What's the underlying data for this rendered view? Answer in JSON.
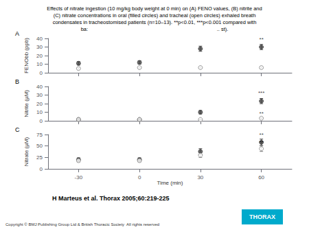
{
  "title": "Effects of nitrate ingestion (10 mg/kg body weight at 0 min) on (A) FENO values, (B) nitrite and\n(C) nitrate concentrations in oral (filled circles) and tracheal (open circles) exhaled breath\ncondensates in tracheostomised patients (n=10–13). **p<0.01, ***p<0.001 compared with\nba:                                                                                          .. st).",
  "citation": "H Marteus et al. Thorax 2005;60:219-225",
  "copyright": "Copyright © BMJ Publishing Group Ltd & British Thoracic Society  All rights reserved",
  "badge": {
    "text": "THORAX",
    "color": "#00aacc"
  },
  "chart_data": [
    {
      "type": "scatter",
      "title": "A",
      "ylabel": "FENObb (ppb)",
      "x": [
        -30,
        0,
        30,
        60
      ],
      "xlim": [
        -45,
        75
      ],
      "xticks": [
        -30,
        0,
        30,
        60
      ],
      "ylim": [
        0,
        40
      ],
      "yticks": [
        0,
        10,
        20,
        30,
        40
      ],
      "grid": false,
      "tick_labels": "y",
      "series": [
        {
          "color": "#444444",
          "marker": "circle",
          "values": [
            11,
            12,
            28,
            30
          ],
          "errors": [
            2,
            2,
            3,
            3
          ]
        },
        {
          "color": "#888888",
          "marker": "open_circle",
          "values": [
            5,
            6,
            6,
            6
          ],
          "errors": [
            1,
            1,
            1,
            1
          ]
        }
      ],
      "annotations": [
        {
          "text": "**",
          "x": 60,
          "y": 36
        }
      ]
    },
    {
      "type": "scatter",
      "title": "B",
      "ylabel": "Nitrite (µM)",
      "x": [
        -30,
        0,
        30,
        60
      ],
      "xlim": [
        -45,
        75
      ],
      "xticks": [
        -30,
        0,
        30,
        60
      ],
      "ylim": [
        0,
        40
      ],
      "yticks": [
        0,
        10,
        20,
        30,
        40
      ],
      "grid": false,
      "tick_labels": "y",
      "series": [
        {
          "color": "#444444",
          "marker": "circle",
          "values": [
            1.5,
            1.5,
            10,
            23
          ],
          "errors": [
            0.5,
            0.5,
            2,
            3
          ]
        },
        {
          "color": "#888888",
          "marker": "open_circle",
          "values": [
            1.5,
            1.5,
            1.5,
            3
          ],
          "errors": [
            0.3,
            0.3,
            0.4,
            0.6
          ]
        }
      ],
      "annotations": [
        {
          "text": "***",
          "x": 60,
          "y": 29
        },
        {
          "text": "**",
          "x": 60,
          "y": 5
        }
      ]
    },
    {
      "type": "scatter",
      "title": "C",
      "ylabel": "Nitrate (µM)",
      "xlabel": "Time (min)",
      "x": [
        -30,
        0,
        30,
        60
      ],
      "xlim": [
        -45,
        75
      ],
      "xticks": [
        -30,
        0,
        30,
        60
      ],
      "ylim": [
        0,
        75
      ],
      "yticks": [
        0,
        25,
        50,
        75
      ],
      "grid": false,
      "series": [
        {
          "color": "#444444",
          "marker": "circle",
          "values": [
            20,
            20,
            38,
            58
          ],
          "errors": [
            4,
            4,
            6,
            7
          ]
        },
        {
          "color": "#888888",
          "marker": "open_circle",
          "values": [
            18,
            18,
            30,
            44
          ],
          "errors": [
            3,
            3,
            5,
            6
          ]
        }
      ],
      "annotations": [
        {
          "text": "**",
          "x": 60,
          "y": 68
        },
        {
          "text": "**",
          "x": 60,
          "y": 52
        }
      ]
    }
  ]
}
